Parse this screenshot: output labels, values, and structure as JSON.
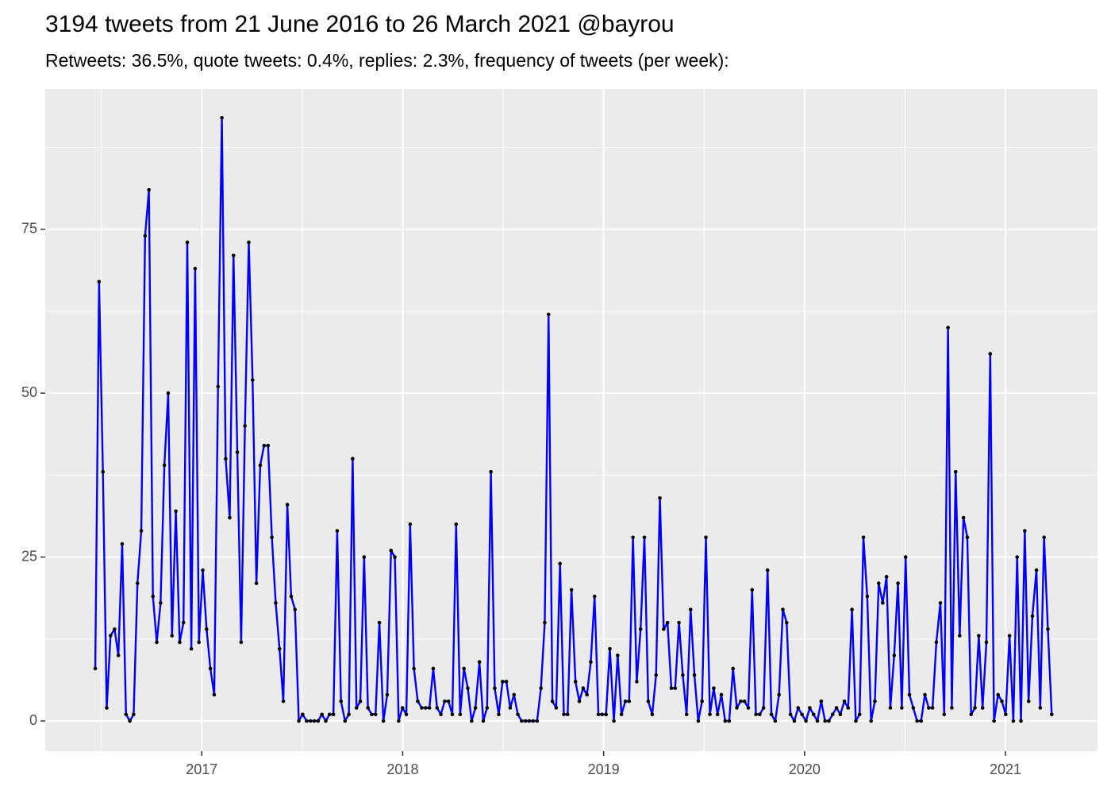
{
  "chart_data": {
    "type": "line",
    "title": "3194 tweets from 21 June 2016 to 26 March 2021 @bayrou",
    "subtitle": "Retweets: 36.5%, quote tweets: 0.4%, replies: 2.3%, frequency of tweets (per week):",
    "color": "#0000ff",
    "marker_color": "#000000",
    "grid": true,
    "xlim": [
      2016.221,
      2021.458
    ],
    "xticks": [
      2017,
      2018,
      2019,
      2020,
      2021
    ],
    "ylim": [
      -4.6,
      96.4
    ],
    "yticks": [
      0,
      25,
      50,
      75
    ],
    "x": [
      2016.47,
      2016.489,
      2016.508,
      2016.527,
      2016.546,
      2016.566,
      2016.585,
      2016.604,
      2016.623,
      2016.642,
      2016.661,
      2016.68,
      2016.699,
      2016.718,
      2016.737,
      2016.757,
      2016.776,
      2016.795,
      2016.814,
      2016.833,
      2016.852,
      2016.871,
      2016.89,
      2016.909,
      2016.928,
      2016.948,
      2016.967,
      2016.986,
      2017.005,
      2017.024,
      2017.043,
      2017.062,
      2017.081,
      2017.1,
      2017.119,
      2017.139,
      2017.158,
      2017.177,
      2017.196,
      2017.215,
      2017.234,
      2017.253,
      2017.272,
      2017.291,
      2017.31,
      2017.33,
      2017.349,
      2017.368,
      2017.387,
      2017.406,
      2017.426,
      2017.445,
      2017.464,
      2017.483,
      2017.502,
      2017.522,
      2017.541,
      2017.56,
      2017.579,
      2017.598,
      2017.617,
      2017.636,
      2017.655,
      2017.674,
      2017.693,
      2017.713,
      2017.732,
      2017.751,
      2017.77,
      2017.789,
      2017.808,
      2017.827,
      2017.846,
      2017.865,
      2017.884,
      2017.904,
      2017.923,
      2017.942,
      2017.961,
      2017.98,
      2017.999,
      2018.018,
      2018.037,
      2018.056,
      2018.075,
      2018.095,
      2018.114,
      2018.133,
      2018.152,
      2018.171,
      2018.19,
      2018.209,
      2018.228,
      2018.247,
      2018.266,
      2018.286,
      2018.305,
      2018.324,
      2018.343,
      2018.362,
      2018.382,
      2018.401,
      2018.42,
      2018.439,
      2018.458,
      2018.478,
      2018.497,
      2018.516,
      2018.535,
      2018.554,
      2018.573,
      2018.592,
      2018.611,
      2018.63,
      2018.649,
      2018.669,
      2018.688,
      2018.707,
      2018.726,
      2018.745,
      2018.764,
      2018.783,
      2018.802,
      2018.821,
      2018.84,
      2018.86,
      2018.879,
      2018.898,
      2018.917,
      2018.936,
      2018.955,
      2018.974,
      2018.993,
      2019.012,
      2019.031,
      2019.051,
      2019.07,
      2019.089,
      2019.108,
      2019.127,
      2019.146,
      2019.165,
      2019.184,
      2019.203,
      2019.222,
      2019.242,
      2019.261,
      2019.28,
      2019.299,
      2019.318,
      2019.337,
      2019.356,
      2019.375,
      2019.394,
      2019.413,
      2019.433,
      2019.452,
      2019.471,
      2019.49,
      2019.509,
      2019.529,
      2019.548,
      2019.567,
      2019.586,
      2019.605,
      2019.625,
      2019.644,
      2019.663,
      2019.682,
      2019.701,
      2019.72,
      2019.739,
      2019.758,
      2019.777,
      2019.796,
      2019.816,
      2019.835,
      2019.854,
      2019.873,
      2019.892,
      2019.911,
      2019.93,
      2019.949,
      2019.968,
      2019.987,
      2020.007,
      2020.026,
      2020.045,
      2020.064,
      2020.083,
      2020.102,
      2020.121,
      2020.14,
      2020.159,
      2020.178,
      2020.198,
      2020.217,
      2020.236,
      2020.255,
      2020.274,
      2020.293,
      2020.312,
      2020.331,
      2020.35,
      2020.369,
      2020.389,
      2020.408,
      2020.427,
      2020.446,
      2020.465,
      2020.484,
      2020.503,
      2020.522,
      2020.541,
      2020.56,
      2020.58,
      2020.599,
      2020.618,
      2020.637,
      2020.656,
      2020.676,
      2020.695,
      2020.714,
      2020.733,
      2020.752,
      2020.772,
      2020.791,
      2020.81,
      2020.829,
      2020.848,
      2020.867,
      2020.886,
      2020.905,
      2020.924,
      2020.943,
      2020.963,
      2020.982,
      2021.001,
      2021.02,
      2021.039,
      2021.058,
      2021.077,
      2021.096,
      2021.115,
      2021.134,
      2021.154,
      2021.173,
      2021.192,
      2021.211,
      2021.23
    ],
    "values": [
      8,
      67,
      38,
      2,
      13,
      14,
      10,
      27,
      1,
      0,
      1,
      21,
      29,
      74,
      81,
      19,
      12,
      18,
      39,
      50,
      13,
      32,
      12,
      15,
      73,
      11,
      69,
      12,
      23,
      14,
      8,
      4,
      51,
      92,
      40,
      31,
      71,
      41,
      12,
      45,
      73,
      52,
      21,
      39,
      42,
      42,
      28,
      18,
      11,
      3,
      33,
      19,
      17,
      0,
      1,
      0,
      0,
      0,
      0,
      1,
      0,
      1,
      1,
      29,
      3,
      0,
      1,
      40,
      2,
      3,
      25,
      2,
      1,
      1,
      15,
      0,
      4,
      26,
      25,
      0,
      2,
      1,
      30,
      8,
      3,
      2,
      2,
      2,
      8,
      2,
      1,
      3,
      3,
      1,
      30,
      1,
      8,
      5,
      0,
      2,
      9,
      0,
      2,
      38,
      5,
      1,
      6,
      6,
      2,
      4,
      1,
      0,
      0,
      0,
      0,
      0,
      5,
      15,
      62,
      3,
      2,
      24,
      1,
      1,
      20,
      6,
      3,
      5,
      4,
      9,
      19,
      1,
      1,
      1,
      11,
      0,
      10,
      1,
      3,
      3,
      28,
      6,
      14,
      28,
      3,
      1,
      7,
      34,
      14,
      15,
      5,
      5,
      15,
      7,
      1,
      17,
      7,
      0,
      3,
      28,
      1,
      5,
      1,
      4,
      0,
      0,
      8,
      2,
      3,
      3,
      2,
      20,
      1,
      1,
      2,
      23,
      1,
      0,
      4,
      17,
      15,
      1,
      0,
      2,
      1,
      0,
      2,
      1,
      0,
      3,
      0,
      0,
      1,
      2,
      1,
      3,
      2,
      17,
      0,
      1,
      28,
      19,
      0,
      3,
      21,
      18,
      22,
      2,
      10,
      21,
      2,
      25,
      4,
      2,
      0,
      0,
      4,
      2,
      2,
      12,
      18,
      1,
      60,
      2,
      38,
      13,
      31,
      28,
      1,
      2,
      13,
      2,
      12,
      56,
      0,
      4,
      3,
      1,
      13,
      0,
      25,
      0,
      29,
      3,
      16,
      23,
      2,
      28,
      14,
      1
    ]
  }
}
